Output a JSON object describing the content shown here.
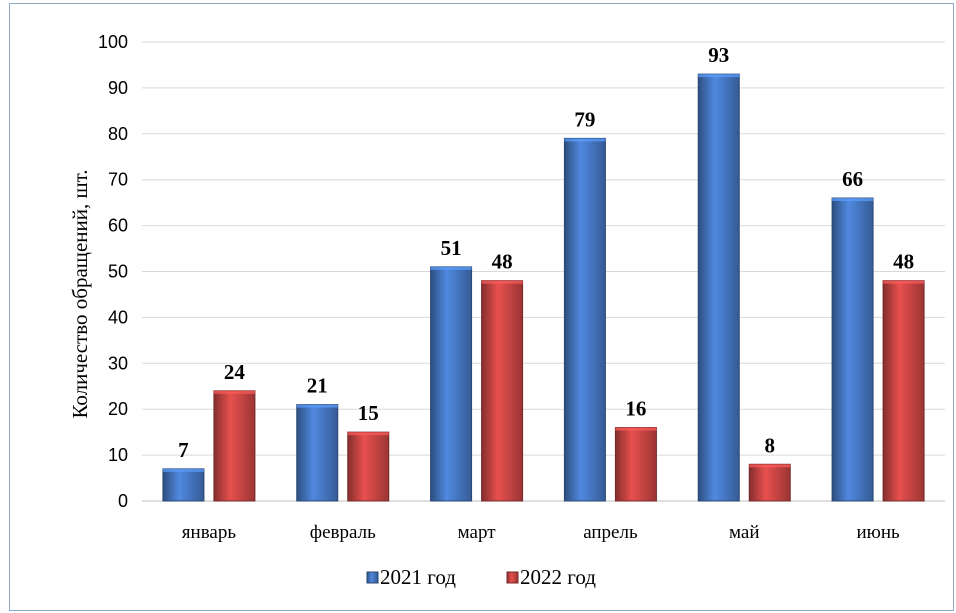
{
  "chart_data": {
    "type": "bar",
    "categories": [
      "январь",
      "февраль",
      "март",
      "апрель",
      "май",
      "июнь"
    ],
    "series": [
      {
        "name": "2021 год",
        "values": [
          7,
          21,
          51,
          79,
          93,
          66
        ],
        "color": "#4a7fcf"
      },
      {
        "name": "2022 год",
        "values": [
          24,
          15,
          48,
          16,
          8,
          48
        ],
        "color": "#d64a48"
      }
    ],
    "ylabel": "Количество обращений, шт.",
    "ylim": [
      0,
      100
    ],
    "yticks": [
      0,
      10,
      20,
      30,
      40,
      50,
      60,
      70,
      80,
      90,
      100
    ],
    "grid": true,
    "legend_position": "bottom",
    "data_labels": true
  }
}
